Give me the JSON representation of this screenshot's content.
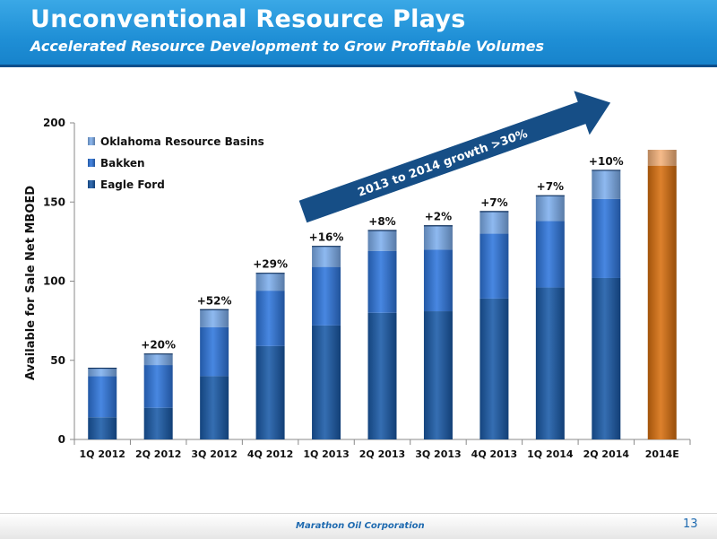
{
  "header": {
    "title": "Unconventional Resource Plays",
    "subtitle": "Accelerated Resource Development to Grow Profitable Volumes"
  },
  "footer": {
    "company": "Marathon Oil Corporation",
    "page": "13"
  },
  "chart_data": {
    "type": "bar",
    "stacked": true,
    "title": "",
    "xlabel": "",
    "ylabel": "Available for Sale Net MBOED",
    "ylim": [
      0,
      200
    ],
    "yticks": [
      0,
      50,
      100,
      150,
      200
    ],
    "grid": false,
    "legend_position": "top-left",
    "categories": [
      "1Q 2012",
      "2Q 2012",
      "3Q 2012",
      "4Q 2012",
      "1Q 2013",
      "2Q 2013",
      "3Q 2013",
      "4Q 2013",
      "1Q 2014",
      "2Q 2014",
      "2014E"
    ],
    "series": [
      {
        "name": "Eagle Ford",
        "color": "#1a5aa8",
        "values": [
          14,
          20,
          40,
          59,
          72,
          80,
          81,
          89,
          96,
          102,
          null
        ]
      },
      {
        "name": "Bakken",
        "color": "#2f77dd",
        "values": [
          26,
          27,
          31,
          35,
          37,
          39,
          39,
          41,
          42,
          50,
          null
        ]
      },
      {
        "name": "Oklahoma Resource Basins",
        "color": "#7fb0ee",
        "values": [
          5,
          7,
          11,
          11,
          13,
          13,
          15,
          14,
          16,
          18,
          null
        ]
      }
    ],
    "estimate": {
      "category": "2014E",
      "color": "#d8700f",
      "range_color": "#f5b27a",
      "low": 173,
      "high": 183
    },
    "growth_labels": [
      "",
      "+20%",
      "+52%",
      "+29%",
      "+16%",
      "+8%",
      "+2%",
      "+7%",
      "+7%",
      "+10%",
      ""
    ],
    "annotation": "2013 to 2014 growth >30%"
  }
}
